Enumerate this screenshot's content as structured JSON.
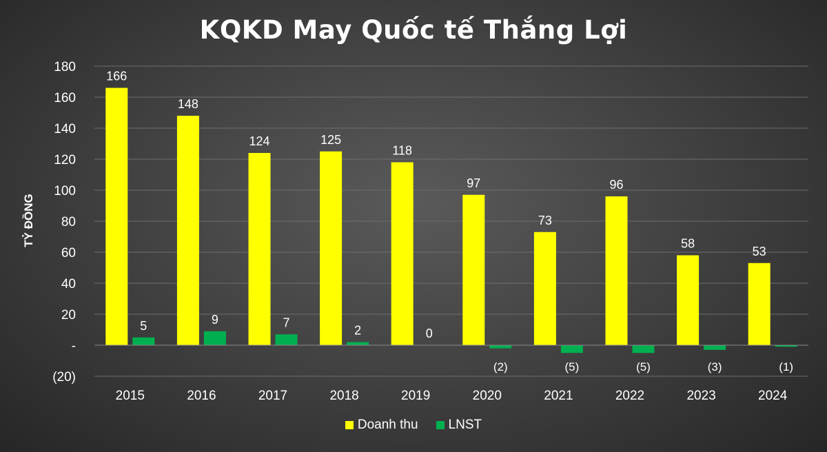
{
  "chart_data": {
    "type": "bar",
    "title": "KQKD May Quốc tế Thắng Lợi",
    "ylabel": "TỶ ĐỒNG",
    "xlabel": "",
    "categories": [
      "2015",
      "2016",
      "2017",
      "2018",
      "2019",
      "2020",
      "2021",
      "2022",
      "2023",
      "2024"
    ],
    "series": [
      {
        "name": "Doanh thu",
        "color": "#ffff00",
        "values": [
          166,
          148,
          124,
          125,
          118,
          97,
          73,
          96,
          58,
          53
        ],
        "labels": [
          "166",
          "148",
          "124",
          "125",
          "118",
          "97",
          "73",
          "96",
          "58",
          "53"
        ]
      },
      {
        "name": "LNST",
        "color": "#00b050",
        "values": [
          5,
          9,
          7,
          2,
          0,
          -2,
          -5,
          -5,
          -3,
          -1
        ],
        "labels": [
          "5",
          "9",
          "7",
          "2",
          "0",
          "(2)",
          "(5)",
          "(5)",
          "(3)",
          "(1)"
        ]
      }
    ],
    "ylim": [
      -20,
      180
    ],
    "yticks": [
      -20,
      0,
      20,
      40,
      60,
      80,
      100,
      120,
      140,
      160,
      180
    ],
    "ytick_labels": [
      "(20)",
      "-",
      "20",
      "40",
      "60",
      "80",
      "100",
      "120",
      "140",
      "160",
      "180"
    ],
    "grid": true,
    "legend_position": "bottom"
  }
}
